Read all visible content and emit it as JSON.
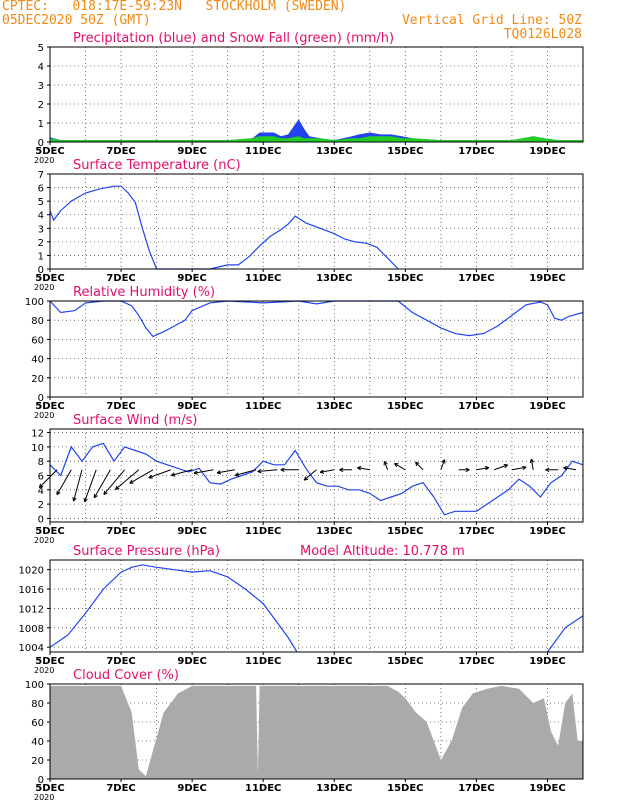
{
  "header": {
    "line1": "CPTEC:   018:17E-59:23N   STOCKHOLM (SWEDEN)",
    "line2": "05DEC2020 50Z (GMT)",
    "grid_note": "Vertical Grid Line: 50Z",
    "run_id": "TQ0126L028"
  },
  "colors": {
    "header": "#f08a18",
    "title": "#e0106e",
    "series": "#2244ee",
    "snow": "#22cc22",
    "cloud": "#aaaaaa"
  },
  "chart_data": [
    {
      "type": "area",
      "title": "Precipitation (blue) and Snow Fall (green) (mm/h)",
      "ylim": [
        0,
        5
      ],
      "yticks": [
        "0",
        "1",
        "2",
        "3",
        "4",
        "5"
      ],
      "x_labels": [
        "5DEC",
        "7DEC",
        "9DEC",
        "11DEC",
        "13DEC",
        "15DEC",
        "17DEC",
        "19DEC"
      ],
      "corner_label": "2020",
      "x": [
        5,
        5.3,
        6,
        7,
        8,
        9,
        10,
        10.7,
        10.9,
        11.1,
        11.3,
        11.5,
        11.7,
        11.85,
        12.0,
        12.15,
        12.3,
        12.6,
        13,
        13.5,
        13.7,
        14,
        14.3,
        14.6,
        14.9,
        15.2,
        16,
        17,
        18,
        18.3,
        18.6,
        18.9,
        19.3,
        20
      ],
      "series": [
        {
          "name": "Precipitation",
          "values": [
            0.25,
            0.1,
            0.1,
            0.1,
            0.1,
            0.1,
            0.1,
            0.2,
            0.5,
            0.5,
            0.5,
            0.3,
            0.4,
            0.8,
            1.2,
            0.7,
            0.3,
            0.2,
            0.1,
            0.3,
            0.4,
            0.5,
            0.4,
            0.4,
            0.3,
            0.2,
            0.1,
            0.1,
            0.1,
            0.2,
            0.3,
            0.2,
            0.1,
            0.1
          ]
        },
        {
          "name": "Snow Fall",
          "values": [
            0.2,
            0.1,
            0.1,
            0.1,
            0.1,
            0.1,
            0.1,
            0.2,
            0.3,
            0.3,
            0.3,
            0.2,
            0.2,
            0.25,
            0.3,
            0.2,
            0.2,
            0.2,
            0.1,
            0.2,
            0.2,
            0.3,
            0.3,
            0.3,
            0.2,
            0.2,
            0.1,
            0.1,
            0.1,
            0.2,
            0.3,
            0.2,
            0.1,
            0.1
          ]
        }
      ]
    },
    {
      "type": "line",
      "title": "Surface Temperature (nC)",
      "ylim": [
        0,
        7
      ],
      "yticks": [
        "0",
        "1",
        "2",
        "3",
        "4",
        "5",
        "6",
        "7"
      ],
      "x_labels": [
        "5DEC",
        "7DEC",
        "9DEC",
        "11DEC",
        "13DEC",
        "15DEC",
        "17DEC",
        "19DEC"
      ],
      "corner_label": "2020",
      "x": [
        5,
        5.1,
        5.3,
        5.6,
        6,
        6.4,
        6.8,
        7,
        7.2,
        7.4,
        7.6,
        7.8,
        8.0,
        9.5,
        10.0,
        10.3,
        10.6,
        10.9,
        11.2,
        11.5,
        11.7,
        11.9,
        12.2,
        12.6,
        13.0,
        13.3,
        13.6,
        13.9,
        14.2,
        14.5,
        14.8
      ],
      "values": [
        4.3,
        3.6,
        4.3,
        5.0,
        5.6,
        5.9,
        6.1,
        6.1,
        5.6,
        4.9,
        3.0,
        1.3,
        0,
        0,
        0.3,
        0.3,
        0.9,
        1.7,
        2.4,
        2.9,
        3.3,
        3.9,
        3.4,
        3.0,
        2.6,
        2.2,
        2.0,
        1.9,
        1.6,
        0.8,
        0
      ]
    },
    {
      "type": "line",
      "title": "Relative Humidity (%)",
      "ylim": [
        0,
        100
      ],
      "yticks": [
        "0",
        "20",
        "40",
        "60",
        "80",
        "100"
      ],
      "x_labels": [
        "5DEC",
        "7DEC",
        "9DEC",
        "11DEC",
        "13DEC",
        "15DEC",
        "17DEC",
        "19DEC"
      ],
      "corner_label": "2020",
      "x": [
        5,
        5.3,
        5.7,
        6,
        6.5,
        7,
        7.3,
        7.5,
        7.7,
        7.9,
        8.2,
        8.5,
        8.8,
        9,
        9.5,
        10,
        11,
        12,
        12.5,
        13,
        14,
        14.8,
        15.2,
        15.6,
        16,
        16.4,
        16.8,
        17.2,
        17.6,
        18,
        18.4,
        18.8,
        19,
        19.2,
        19.4,
        19.6,
        20
      ],
      "values": [
        100,
        88,
        90,
        98,
        100,
        100,
        95,
        85,
        72,
        63,
        68,
        74,
        80,
        90,
        98,
        100,
        98,
        100,
        97,
        100,
        100,
        100,
        88,
        80,
        72,
        66,
        64,
        66,
        74,
        85,
        96,
        99,
        96,
        82,
        80,
        84,
        88
      ]
    },
    {
      "type": "line",
      "title": "Surface Wind (m/s)",
      "ylim": [
        -0.5,
        12.5
      ],
      "yticks": [
        "0",
        "2",
        "4",
        "6",
        "8",
        "10",
        "12"
      ],
      "x_labels": [
        "5DEC",
        "7DEC",
        "9DEC",
        "11DEC",
        "13DEC",
        "15DEC",
        "17DEC",
        "19DEC"
      ],
      "corner_label": "2020",
      "x": [
        5,
        5.3,
        5.6,
        5.9,
        6.2,
        6.5,
        6.8,
        7.1,
        7.4,
        7.7,
        8,
        8.3,
        8.6,
        8.9,
        9.2,
        9.5,
        9.8,
        10.1,
        10.4,
        10.7,
        11,
        11.3,
        11.6,
        11.9,
        12.2,
        12.5,
        12.8,
        13.1,
        13.4,
        13.7,
        14,
        14.3,
        14.6,
        14.9,
        15.2,
        15.5,
        15.8,
        16.1,
        16.4,
        16.7,
        17,
        17.3,
        17.6,
        17.9,
        18.2,
        18.5,
        18.8,
        19.1,
        19.4,
        19.7,
        20
      ],
      "values": [
        7.5,
        6,
        10,
        8,
        10,
        10.5,
        8,
        10,
        9.5,
        9,
        8,
        7.5,
        7,
        6.5,
        7,
        5,
        4.8,
        5.5,
        6,
        6.5,
        8,
        7.5,
        7.5,
        9.5,
        7,
        5,
        4.5,
        4.5,
        4,
        4,
        3.5,
        2.5,
        3,
        3.5,
        4.5,
        5,
        3,
        0.5,
        1,
        1,
        1,
        2,
        3,
        4,
        5.5,
        4.5,
        3,
        5,
        6,
        8,
        7.5
      ],
      "arrows": [
        {
          "x": 5.2,
          "dir": 135,
          "len": 28
        },
        {
          "x": 5.6,
          "dir": 150,
          "len": 32
        },
        {
          "x": 5.9,
          "dir": 165,
          "len": 36
        },
        {
          "x": 6.3,
          "dir": 160,
          "len": 38
        },
        {
          "x": 6.7,
          "dir": 150,
          "len": 36
        },
        {
          "x": 7.1,
          "dir": 140,
          "len": 36
        },
        {
          "x": 7.5,
          "dir": 130,
          "len": 34
        },
        {
          "x": 7.9,
          "dir": 120,
          "len": 30
        },
        {
          "x": 8.4,
          "dir": 110,
          "len": 26
        },
        {
          "x": 9.0,
          "dir": 105,
          "len": 24
        },
        {
          "x": 9.6,
          "dir": 100,
          "len": 22
        },
        {
          "x": 10.2,
          "dir": 100,
          "len": 20
        },
        {
          "x": 10.8,
          "dir": 105,
          "len": 24
        },
        {
          "x": 11.4,
          "dir": 95,
          "len": 22
        },
        {
          "x": 12.0,
          "dir": 90,
          "len": 20
        },
        {
          "x": 12.5,
          "dir": 130,
          "len": 18
        },
        {
          "x": 13.0,
          "dir": 100,
          "len": 16
        },
        {
          "x": 13.5,
          "dir": 90,
          "len": 14
        },
        {
          "x": 14.0,
          "dir": 80,
          "len": 14
        },
        {
          "x": 14.5,
          "dir": 20,
          "len": 10
        },
        {
          "x": 15.0,
          "dir": 60,
          "len": 14
        },
        {
          "x": 15.5,
          "dir": 45,
          "len": 12
        },
        {
          "x": 16.0,
          "dir": 340,
          "len": 12
        },
        {
          "x": 16.5,
          "dir": 270,
          "len": 12
        },
        {
          "x": 17.0,
          "dir": 280,
          "len": 14
        },
        {
          "x": 17.5,
          "dir": 290,
          "len": 16
        },
        {
          "x": 18.0,
          "dir": 280,
          "len": 16
        },
        {
          "x": 18.6,
          "dir": 10,
          "len": 12
        },
        {
          "x": 19.3,
          "dir": 90,
          "len": 14
        },
        {
          "x": 19.8,
          "dir": 80,
          "len": 14
        }
      ]
    },
    {
      "type": "line",
      "title": "Surface Pressure (hPa)",
      "annotation": "Model Altitude: 10.778 m",
      "ylim": [
        1003,
        1022
      ],
      "yticks": [
        "1004",
        "1008",
        "1012",
        "1016",
        "1020"
      ],
      "x_labels": [
        "5DEC",
        "7DEC",
        "9DEC",
        "11DEC",
        "13DEC",
        "15DEC",
        "17DEC",
        "19DEC"
      ],
      "corner_label": "2020",
      "x": [
        5,
        5.5,
        6,
        6.5,
        7,
        7.3,
        7.6,
        8,
        8.5,
        9,
        9.5,
        10,
        10.5,
        11,
        11.4,
        11.7,
        11.95,
        19,
        19.5,
        20
      ],
      "values": [
        1004,
        1006.5,
        1011,
        1016,
        1019.5,
        1020.5,
        1021,
        1020.5,
        1020,
        1019.5,
        1019.8,
        1018.5,
        1016,
        1013,
        1009,
        1006,
        1003,
        1003,
        1008,
        1010.5
      ]
    },
    {
      "type": "area",
      "title": "Cloud Cover (%)",
      "ylim": [
        0,
        100
      ],
      "yticks": [
        "0",
        "20",
        "40",
        "60",
        "80",
        "100"
      ],
      "x_labels": [
        "5DEC",
        "7DEC",
        "9DEC",
        "11DEC",
        "13DEC",
        "15DEC",
        "17DEC",
        "19DEC"
      ],
      "corner_label": "2020",
      "x": [
        5,
        6.5,
        7,
        7.3,
        7.5,
        7.7,
        7.9,
        8.2,
        8.6,
        9,
        10.5,
        10.8,
        10.85,
        10.9,
        11.5,
        14.5,
        14.8,
        15,
        15.3,
        15.6,
        16.0,
        16.3,
        16.6,
        16.9,
        17.3,
        17.7,
        18.2,
        18.6,
        18.9,
        19.1,
        19.3,
        19.5,
        19.7,
        19.85,
        20
      ],
      "values": [
        98,
        98,
        98,
        70,
        10,
        3,
        30,
        70,
        90,
        98,
        98,
        98,
        5,
        98,
        98,
        98,
        92,
        85,
        70,
        60,
        20,
        40,
        75,
        90,
        95,
        98,
        95,
        80,
        85,
        50,
        35,
        80,
        90,
        40,
        40
      ]
    }
  ]
}
